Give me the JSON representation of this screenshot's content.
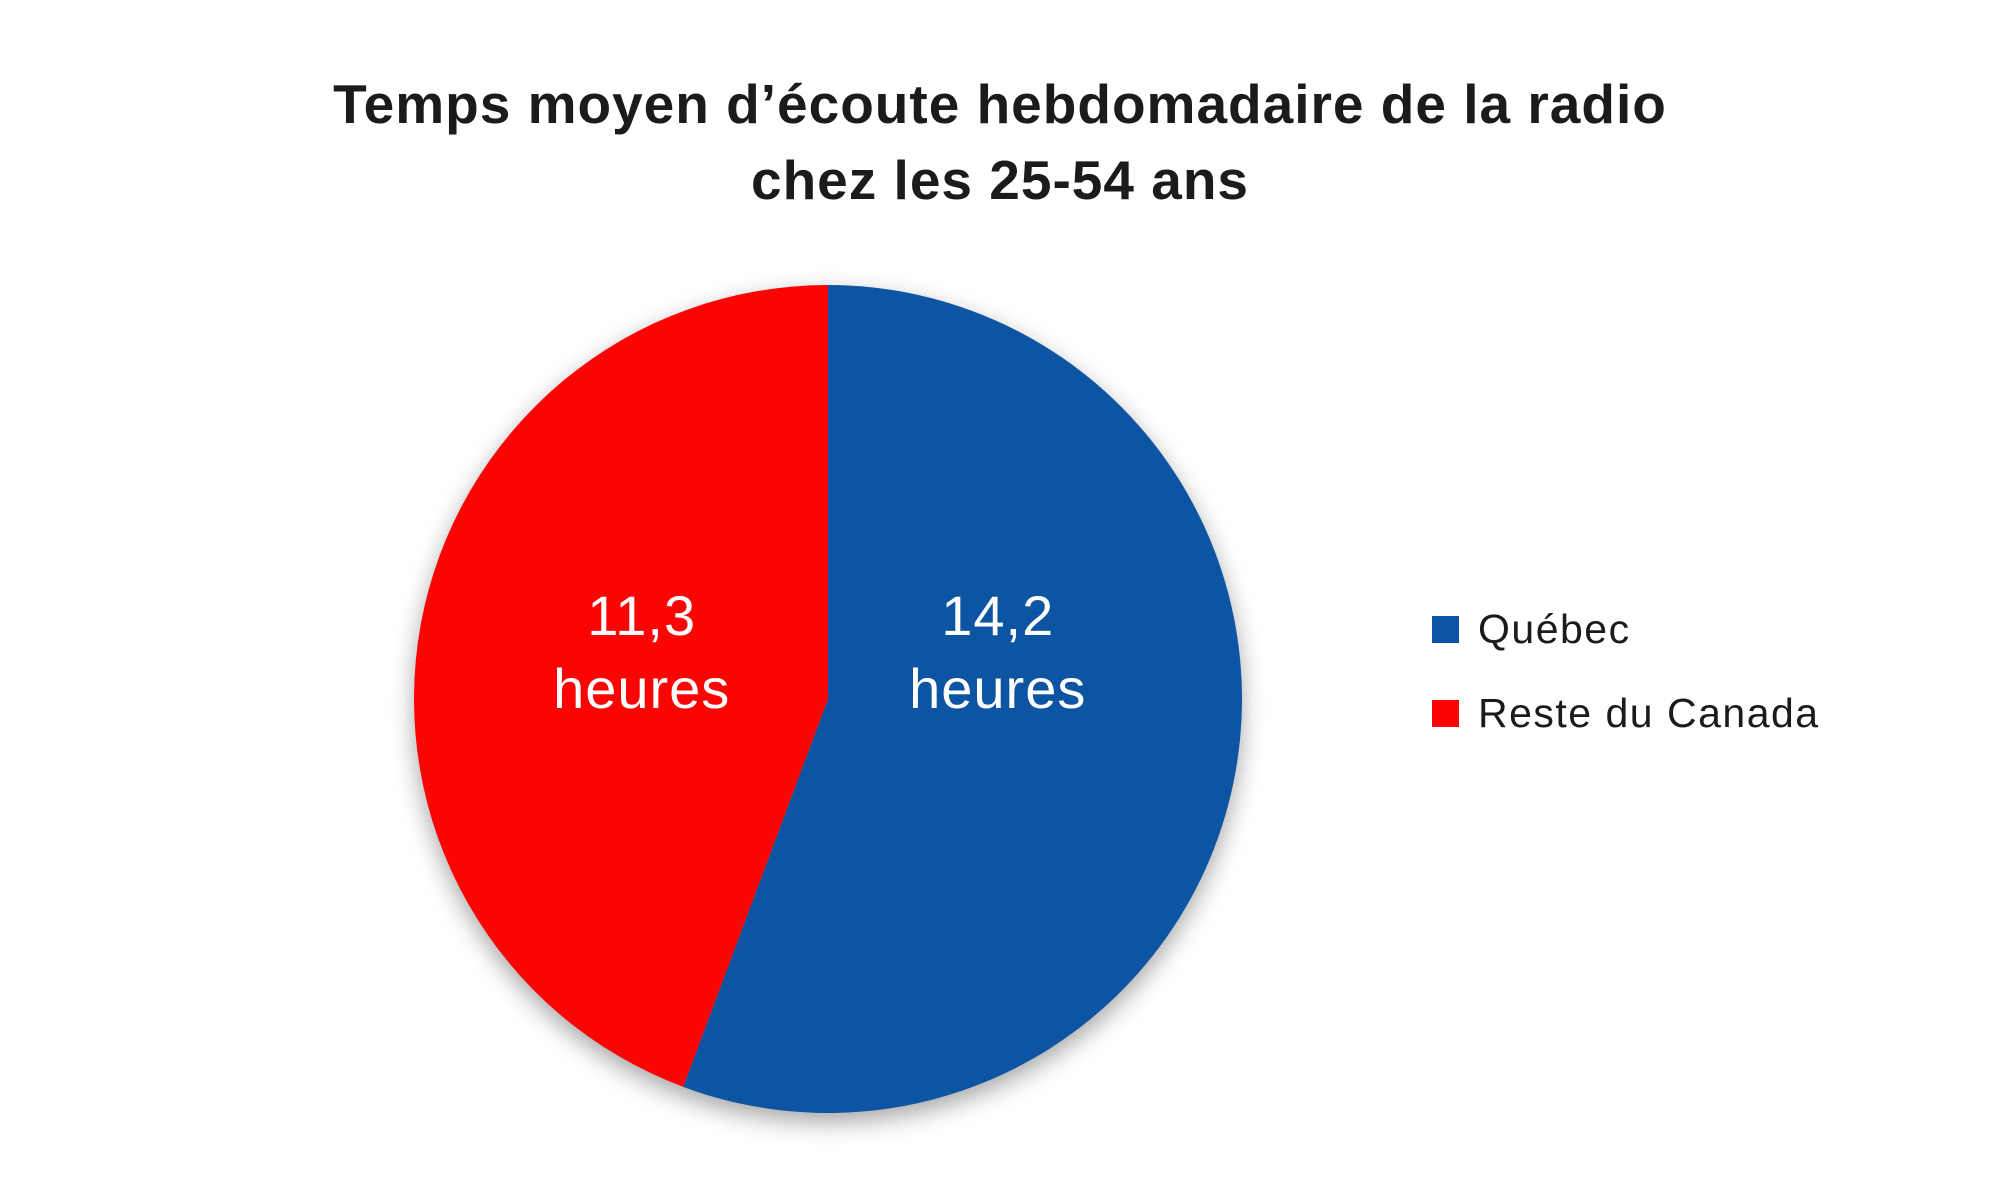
{
  "title": {
    "line1": "Temps moyen d’écoute hebdomadaire de la radio",
    "line2": "chez les 25-54 ans"
  },
  "chart_data": {
    "type": "pie",
    "title": "Temps moyen d’écoute hebdomadaire de la radio chez les 25-54 ans",
    "unit": "heures",
    "total": 25.5,
    "start_angle_deg": 0,
    "direction": "clockwise",
    "legend_position": "right",
    "label_color": "#ffffff",
    "slices": [
      {
        "label": "Québec",
        "value": 14.2,
        "display": "14,2",
        "unit": "heures",
        "color": "#0D55A3"
      },
      {
        "label": "Reste du Canada",
        "value": 11.3,
        "display": "11,3",
        "unit": "heures",
        "color": "#FB0404"
      }
    ]
  },
  "legend": {
    "items": [
      {
        "label": "Québec",
        "color": "#0D55A3"
      },
      {
        "label": "Reste du Canada",
        "color": "#FB0404"
      }
    ]
  }
}
